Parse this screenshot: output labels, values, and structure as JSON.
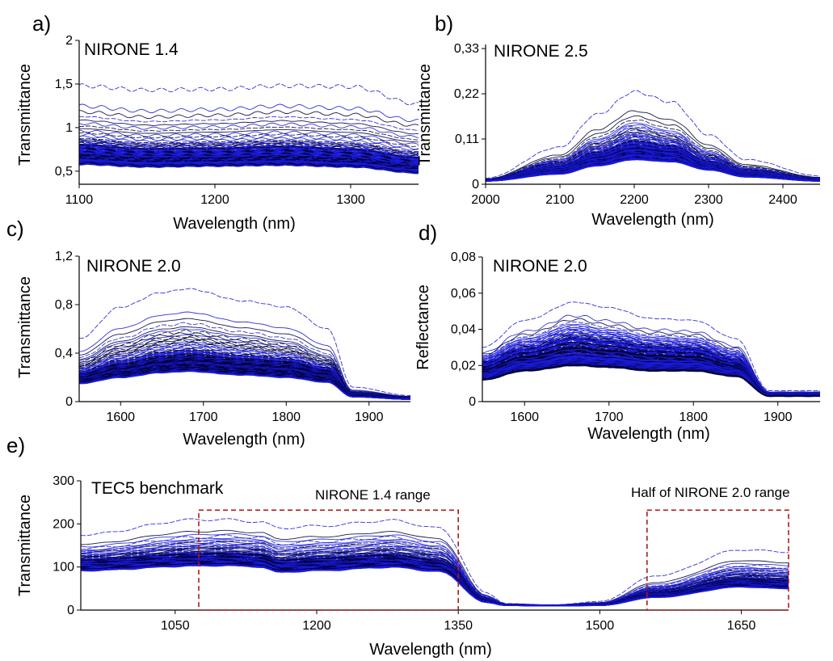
{
  "figure": {
    "colors": {
      "series_primary": "#1a1ad6",
      "series_dark": "#000033",
      "box": "#b01818",
      "axis": "#000000"
    }
  },
  "chart_data": [
    {
      "id": "a",
      "type": "line",
      "panel_label": "a)",
      "title": "NIRONE 1.4",
      "xlabel": "Wavelength (nm)",
      "ylabel": "Transmittance",
      "xlim": [
        1100,
        1350
      ],
      "ylim": [
        0.35,
        2.0
      ],
      "xticks": [
        1100,
        1200,
        1300
      ],
      "xtick_labels": [
        "1100",
        "1200",
        "1300"
      ],
      "yticks": [
        0.5,
        1.0,
        1.5,
        2.0
      ],
      "ytick_labels": [
        "0,5",
        "1",
        "1,5",
        "2"
      ],
      "grid": false,
      "n_spectra": 90,
      "x": [
        1100,
        1150,
        1200,
        1250,
        1300,
        1350
      ],
      "series": [
        {
          "values": [
            1.48,
            1.43,
            1.44,
            1.48,
            1.47,
            1.27
          ]
        },
        {
          "values": [
            1.2,
            1.14,
            1.16,
            1.2,
            1.17,
            1.04
          ]
        },
        {
          "values": [
            0.87,
            0.82,
            0.83,
            0.85,
            0.82,
            0.72
          ]
        },
        {
          "values": [
            0.72,
            0.68,
            0.68,
            0.7,
            0.67,
            0.58
          ]
        },
        {
          "values": [
            0.58,
            0.55,
            0.56,
            0.57,
            0.55,
            0.48
          ]
        }
      ]
    },
    {
      "id": "b",
      "type": "line",
      "panel_label": "b)",
      "title": "NIRONE 2.5",
      "xlabel": "Wavelength (nm)",
      "ylabel": "Transmittance",
      "xlim": [
        2000,
        2450
      ],
      "ylim": [
        0,
        0.34
      ],
      "xticks": [
        2000,
        2100,
        2200,
        2300,
        2400
      ],
      "xtick_labels": [
        "2000",
        "2100",
        "2200",
        "2300",
        "2400"
      ],
      "yticks": [
        0,
        0.11,
        0.22,
        0.33
      ],
      "ytick_labels": [
        "0",
        "0,11",
        "0,22",
        "0,33"
      ],
      "grid": false,
      "n_spectra": 90,
      "x": [
        2000,
        2100,
        2150,
        2200,
        2250,
        2300,
        2350,
        2450
      ],
      "series": [
        {
          "values": [
            0.015,
            0.09,
            0.17,
            0.225,
            0.2,
            0.12,
            0.06,
            0.02
          ]
        },
        {
          "values": [
            0.012,
            0.06,
            0.11,
            0.15,
            0.13,
            0.08,
            0.04,
            0.015
          ]
        },
        {
          "values": [
            0.01,
            0.04,
            0.07,
            0.095,
            0.085,
            0.05,
            0.025,
            0.01
          ]
        },
        {
          "values": [
            0.008,
            0.025,
            0.045,
            0.06,
            0.055,
            0.035,
            0.018,
            0.008
          ]
        }
      ]
    },
    {
      "id": "c",
      "type": "line",
      "panel_label": "c)",
      "title": "NIRONE 2.0",
      "xlabel": "Wavelength (nm)",
      "ylabel": "Transmittance",
      "xlim": [
        1550,
        1950
      ],
      "ylim": [
        0,
        1.2
      ],
      "xticks": [
        1600,
        1700,
        1800,
        1900
      ],
      "xtick_labels": [
        "1600",
        "1700",
        "1800",
        "1900"
      ],
      "yticks": [
        0,
        0.4,
        0.8,
        1.2
      ],
      "ytick_labels": [
        "0",
        "0,4",
        "0,8",
        "1,2"
      ],
      "grid": false,
      "n_spectra": 90,
      "x": [
        1550,
        1600,
        1650,
        1680,
        1750,
        1800,
        1850,
        1880,
        1950
      ],
      "series": [
        {
          "values": [
            0.52,
            0.78,
            0.9,
            0.93,
            0.83,
            0.78,
            0.6,
            0.12,
            0.05
          ]
        },
        {
          "values": [
            0.35,
            0.5,
            0.6,
            0.62,
            0.55,
            0.5,
            0.38,
            0.08,
            0.04
          ]
        },
        {
          "values": [
            0.22,
            0.3,
            0.36,
            0.38,
            0.34,
            0.32,
            0.25,
            0.06,
            0.03
          ]
        },
        {
          "values": [
            0.15,
            0.2,
            0.24,
            0.25,
            0.22,
            0.2,
            0.16,
            0.04,
            0.02
          ]
        }
      ]
    },
    {
      "id": "d",
      "type": "line",
      "panel_label": "d)",
      "title": "NIRONE 2.0",
      "xlabel": "Wavelength (nm)",
      "ylabel": "Reflectance",
      "xlim": [
        1550,
        1950
      ],
      "ylim": [
        0,
        0.08
      ],
      "xticks": [
        1600,
        1700,
        1800,
        1900
      ],
      "xtick_labels": [
        "1600",
        "1700",
        "1800",
        "1900"
      ],
      "yticks": [
        0,
        0.02,
        0.04,
        0.06,
        0.08
      ],
      "ytick_labels": [
        "0",
        "0,02",
        "0,04",
        "0,06",
        "0,08"
      ],
      "grid": false,
      "n_spectra": 90,
      "x": [
        1550,
        1600,
        1660,
        1700,
        1750,
        1800,
        1850,
        1890,
        1950
      ],
      "series": [
        {
          "values": [
            0.03,
            0.045,
            0.055,
            0.052,
            0.046,
            0.045,
            0.035,
            0.006,
            0.006
          ]
        },
        {
          "values": [
            0.025,
            0.035,
            0.043,
            0.04,
            0.036,
            0.035,
            0.028,
            0.005,
            0.005
          ]
        },
        {
          "values": [
            0.02,
            0.028,
            0.034,
            0.032,
            0.029,
            0.028,
            0.022,
            0.004,
            0.004
          ]
        },
        {
          "values": [
            0.012,
            0.017,
            0.02,
            0.019,
            0.017,
            0.017,
            0.014,
            0.003,
            0.003
          ]
        }
      ]
    },
    {
      "id": "e",
      "type": "line",
      "panel_label": "e)",
      "title": "TEC5 benchmark",
      "xlabel": "Wavelength (nm)",
      "ylabel": "Transmittance",
      "xlim": [
        950,
        1700
      ],
      "ylim": [
        0,
        300
      ],
      "xticks": [
        1050,
        1200,
        1350,
        1500,
        1650
      ],
      "xtick_labels": [
        "1050",
        "1200",
        "1350",
        "1500",
        "1650"
      ],
      "yticks": [
        0,
        100,
        200,
        300
      ],
      "ytick_labels": [
        "0",
        "100",
        "200",
        "300"
      ],
      "grid": false,
      "n_spectra": 90,
      "x": [
        950,
        1075,
        1100,
        1140,
        1160,
        1200,
        1280,
        1330,
        1380,
        1400,
        1450,
        1500,
        1560,
        1650,
        1700
      ],
      "series": [
        {
          "values": [
            175,
            210,
            210,
            205,
            190,
            195,
            208,
            190,
            40,
            15,
            12,
            20,
            80,
            140,
            135
          ]
        },
        {
          "values": [
            140,
            165,
            168,
            165,
            150,
            155,
            165,
            150,
            30,
            14,
            12,
            16,
            55,
            100,
            95
          ]
        },
        {
          "values": [
            112,
            125,
            126,
            123,
            110,
            115,
            122,
            110,
            22,
            12,
            11,
            13,
            38,
            68,
            64
          ]
        },
        {
          "values": [
            92,
            103,
            104,
            101,
            88,
            92,
            100,
            90,
            18,
            11,
            10,
            11,
            30,
            54,
            50
          ]
        }
      ],
      "annotations": [
        {
          "text": "NIRONE 1.4 range",
          "x_range": [
            1075,
            1350
          ],
          "y_range": [
            0,
            232
          ]
        },
        {
          "text": "Half of NIRONE 2.0 range",
          "x_range": [
            1550,
            1700
          ],
          "y_range": [
            0,
            232
          ]
        }
      ]
    }
  ]
}
